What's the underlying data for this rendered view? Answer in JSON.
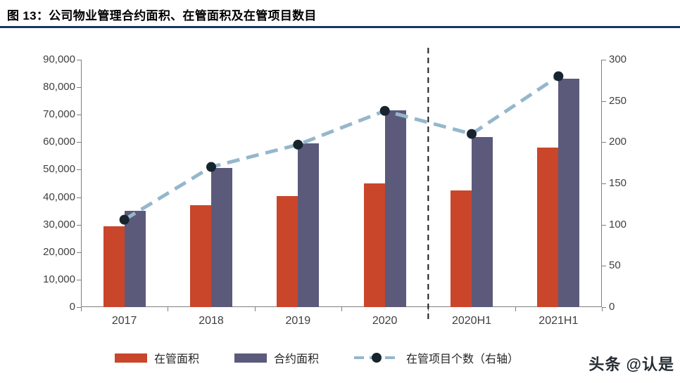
{
  "title": "图 13：公司物业管理合约面积、在管面积及在管项目数目",
  "watermark": "头条 @认是",
  "colors": {
    "bar_managed": "#C9462B",
    "bar_contracted": "#5C5A7B",
    "line": "#95B7CC",
    "dot": "#17242E",
    "title_rule": "#17375E",
    "axis": "#7f7f7f",
    "separator": "#1a1a1a",
    "text": "#3f3f3f"
  },
  "chart_data": {
    "type": "bar",
    "subtype": "bar+line combo, dual axis",
    "title": "图 13：公司物业管理合约面积、在管面积及在管项目数目",
    "categories": [
      "2017",
      "2018",
      "2019",
      "2020",
      "2020H1",
      "2021H1"
    ],
    "series": [
      {
        "name": "在管面积",
        "key": "managed-area",
        "type": "bar",
        "axis": "left",
        "values": [
          29500,
          37000,
          40300,
          45000,
          42500,
          58000
        ]
      },
      {
        "name": "合约面积",
        "key": "contracted-area",
        "type": "bar",
        "axis": "left",
        "values": [
          35000,
          50500,
          59500,
          71500,
          62000,
          83000
        ]
      },
      {
        "name": "在管项目个数（右轴）",
        "key": "project-count",
        "type": "line",
        "axis": "right",
        "values": [
          106,
          170,
          197,
          238,
          210,
          280
        ]
      }
    ],
    "left_axis": {
      "min": 0,
      "max": 90000,
      "step": 10000,
      "ticks": [
        "90,000",
        "80,000",
        "70,000",
        "60,000",
        "50,000",
        "40,000",
        "30,000",
        "20,000",
        "10,000",
        "0"
      ]
    },
    "right_axis": {
      "min": 0,
      "max": 300,
      "step": 50,
      "ticks": [
        "300",
        "250",
        "200",
        "150",
        "100",
        "50",
        "0"
      ]
    },
    "separator_boundary_index": 4,
    "grid": false,
    "legend_position": "bottom",
    "xlabel": "",
    "ylabel_left": "",
    "ylabel_right": ""
  }
}
